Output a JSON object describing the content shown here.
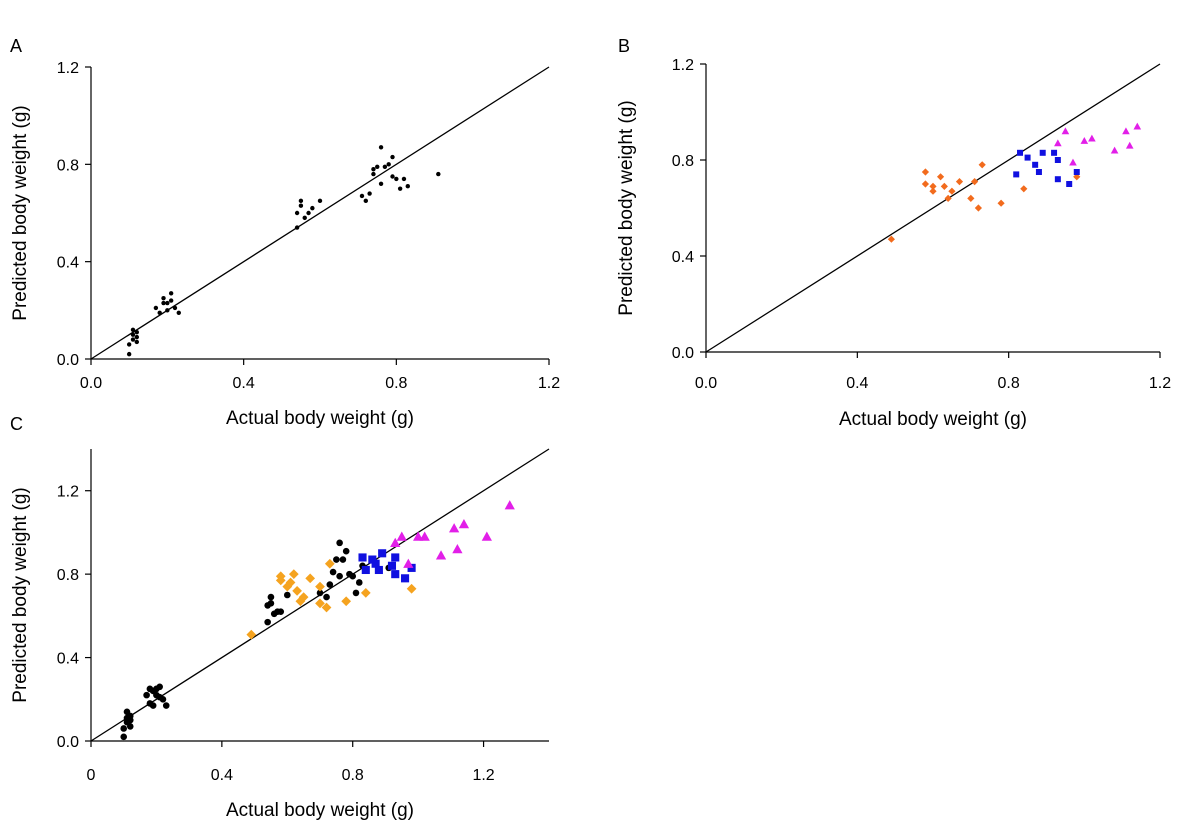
{
  "chart_data": [
    {
      "panel": "A",
      "type": "scatter",
      "xlabel": "Actual body weight (g)",
      "ylabel": "Predicted body weight (g)",
      "xlim": [
        0,
        1.2
      ],
      "ylim": [
        0,
        1.2
      ],
      "xticks": [
        "0.0",
        "0.4",
        "0.8",
        "1.2"
      ],
      "yticks": [
        "0.0",
        "0.4",
        "0.8",
        "1.2"
      ],
      "identity_line": true,
      "series": [
        {
          "color": "#000000",
          "marker": "circle",
          "points": [
            [
              0.1,
              0.02
            ],
            [
              0.1,
              0.06
            ],
            [
              0.11,
              0.08
            ],
            [
              0.11,
              0.1
            ],
            [
              0.12,
              0.09
            ],
            [
              0.11,
              0.12
            ],
            [
              0.12,
              0.07
            ],
            [
              0.12,
              0.11
            ],
            [
              0.17,
              0.21
            ],
            [
              0.18,
              0.19
            ],
            [
              0.19,
              0.23
            ],
            [
              0.19,
              0.25
            ],
            [
              0.2,
              0.2
            ],
            [
              0.2,
              0.23
            ],
            [
              0.21,
              0.24
            ],
            [
              0.21,
              0.27
            ],
            [
              0.22,
              0.21
            ],
            [
              0.23,
              0.19
            ],
            [
              0.54,
              0.54
            ],
            [
              0.54,
              0.6
            ],
            [
              0.55,
              0.63
            ],
            [
              0.55,
              0.65
            ],
            [
              0.56,
              0.58
            ],
            [
              0.57,
              0.6
            ],
            [
              0.58,
              0.62
            ],
            [
              0.6,
              0.65
            ],
            [
              0.71,
              0.67
            ],
            [
              0.72,
              0.65
            ],
            [
              0.73,
              0.68
            ],
            [
              0.74,
              0.76
            ],
            [
              0.74,
              0.78
            ],
            [
              0.75,
              0.79
            ],
            [
              0.76,
              0.72
            ],
            [
              0.76,
              0.87
            ],
            [
              0.77,
              0.79
            ],
            [
              0.78,
              0.8
            ],
            [
              0.79,
              0.75
            ],
            [
              0.79,
              0.83
            ],
            [
              0.8,
              0.74
            ],
            [
              0.81,
              0.7
            ],
            [
              0.82,
              0.74
            ],
            [
              0.83,
              0.71
            ],
            [
              0.91,
              0.76
            ]
          ]
        }
      ]
    },
    {
      "panel": "B",
      "type": "scatter",
      "xlabel": "Actual body weight (g)",
      "ylabel": "Predicted body weight (g)",
      "xlim": [
        0,
        1.2
      ],
      "ylim": [
        0,
        1.2
      ],
      "xticks": [
        "0.0",
        "0.4",
        "0.8",
        "1.2"
      ],
      "yticks": [
        "0.0",
        "0.4",
        "0.8",
        "1.2"
      ],
      "identity_line": true,
      "series": [
        {
          "color": "#f26b1d",
          "marker": "diamond",
          "points": [
            [
              0.49,
              0.47
            ],
            [
              0.58,
              0.75
            ],
            [
              0.58,
              0.7
            ],
            [
              0.6,
              0.69
            ],
            [
              0.6,
              0.67
            ],
            [
              0.62,
              0.73
            ],
            [
              0.63,
              0.69
            ],
            [
              0.64,
              0.64
            ],
            [
              0.65,
              0.67
            ],
            [
              0.67,
              0.71
            ],
            [
              0.7,
              0.64
            ],
            [
              0.71,
              0.71
            ],
            [
              0.72,
              0.6
            ],
            [
              0.73,
              0.78
            ],
            [
              0.78,
              0.62
            ],
            [
              0.84,
              0.68
            ],
            [
              0.98,
              0.73
            ]
          ]
        },
        {
          "color": "#1010e0",
          "marker": "square",
          "points": [
            [
              0.82,
              0.74
            ],
            [
              0.83,
              0.83
            ],
            [
              0.85,
              0.81
            ],
            [
              0.87,
              0.78
            ],
            [
              0.88,
              0.75
            ],
            [
              0.89,
              0.83
            ],
            [
              0.92,
              0.83
            ],
            [
              0.93,
              0.8
            ],
            [
              0.93,
              0.72
            ],
            [
              0.96,
              0.7
            ],
            [
              0.98,
              0.75
            ]
          ]
        },
        {
          "color": "#e21fe8",
          "marker": "triangle",
          "points": [
            [
              0.93,
              0.87
            ],
            [
              0.95,
              0.92
            ],
            [
              0.97,
              0.79
            ],
            [
              1.0,
              0.88
            ],
            [
              1.02,
              0.89
            ],
            [
              1.08,
              0.84
            ],
            [
              1.11,
              0.92
            ],
            [
              1.12,
              0.86
            ],
            [
              1.14,
              0.94
            ]
          ]
        }
      ]
    },
    {
      "panel": "C",
      "type": "scatter",
      "xlabel": "Actual body weight (g)",
      "ylabel": "Predicted body weight (g)",
      "xlim": [
        0,
        1.4
      ],
      "ylim": [
        0,
        1.4
      ],
      "xticks": [
        "0",
        "0.4",
        "0.8",
        "1.2"
      ],
      "yticks": [
        "0.0",
        "0.4",
        "0.8",
        "1.2"
      ],
      "identity_line": true,
      "series": [
        {
          "color": "#000000",
          "marker": "circle",
          "points": [
            [
              0.1,
              0.02
            ],
            [
              0.1,
              0.06
            ],
            [
              0.11,
              0.09
            ],
            [
              0.11,
              0.11
            ],
            [
              0.11,
              0.14
            ],
            [
              0.12,
              0.07
            ],
            [
              0.12,
              0.1
            ],
            [
              0.12,
              0.12
            ],
            [
              0.17,
              0.22
            ],
            [
              0.18,
              0.18
            ],
            [
              0.18,
              0.25
            ],
            [
              0.19,
              0.17
            ],
            [
              0.19,
              0.24
            ],
            [
              0.2,
              0.22
            ],
            [
              0.2,
              0.25
            ],
            [
              0.21,
              0.21
            ],
            [
              0.21,
              0.26
            ],
            [
              0.22,
              0.2
            ],
            [
              0.23,
              0.17
            ],
            [
              0.54,
              0.57
            ],
            [
              0.54,
              0.65
            ],
            [
              0.55,
              0.66
            ],
            [
              0.55,
              0.69
            ],
            [
              0.56,
              0.61
            ],
            [
              0.57,
              0.62
            ],
            [
              0.58,
              0.62
            ],
            [
              0.6,
              0.7
            ],
            [
              0.7,
              0.71
            ],
            [
              0.72,
              0.69
            ],
            [
              0.73,
              0.75
            ],
            [
              0.74,
              0.81
            ],
            [
              0.75,
              0.87
            ],
            [
              0.76,
              0.95
            ],
            [
              0.76,
              0.79
            ],
            [
              0.77,
              0.87
            ],
            [
              0.78,
              0.91
            ],
            [
              0.79,
              0.8
            ],
            [
              0.8,
              0.79
            ],
            [
              0.81,
              0.71
            ],
            [
              0.82,
              0.76
            ],
            [
              0.83,
              0.84
            ],
            [
              0.91,
              0.83
            ]
          ]
        },
        {
          "color": "#f5a31f",
          "marker": "diamond",
          "points": [
            [
              0.49,
              0.51
            ],
            [
              0.58,
              0.77
            ],
            [
              0.58,
              0.79
            ],
            [
              0.6,
              0.74
            ],
            [
              0.61,
              0.76
            ],
            [
              0.62,
              0.8
            ],
            [
              0.63,
              0.72
            ],
            [
              0.64,
              0.67
            ],
            [
              0.65,
              0.69
            ],
            [
              0.67,
              0.78
            ],
            [
              0.7,
              0.66
            ],
            [
              0.7,
              0.74
            ],
            [
              0.72,
              0.64
            ],
            [
              0.73,
              0.85
            ],
            [
              0.78,
              0.67
            ],
            [
              0.84,
              0.71
            ],
            [
              0.98,
              0.73
            ]
          ]
        },
        {
          "color": "#1010e0",
          "marker": "square",
          "points": [
            [
              0.83,
              0.88
            ],
            [
              0.84,
              0.82
            ],
            [
              0.86,
              0.87
            ],
            [
              0.87,
              0.85
            ],
            [
              0.88,
              0.82
            ],
            [
              0.89,
              0.9
            ],
            [
              0.92,
              0.84
            ],
            [
              0.93,
              0.88
            ],
            [
              0.93,
              0.8
            ],
            [
              0.96,
              0.78
            ],
            [
              0.98,
              0.83
            ]
          ]
        },
        {
          "color": "#e21fe8",
          "marker": "triangle",
          "points": [
            [
              0.93,
              0.95
            ],
            [
              0.95,
              0.98
            ],
            [
              0.97,
              0.85
            ],
            [
              1.0,
              0.98
            ],
            [
              1.02,
              0.98
            ],
            [
              1.07,
              0.89
            ],
            [
              1.11,
              1.02
            ],
            [
              1.12,
              0.92
            ],
            [
              1.14,
              1.04
            ],
            [
              1.21,
              0.98
            ],
            [
              1.28,
              1.13
            ]
          ]
        }
      ]
    }
  ]
}
